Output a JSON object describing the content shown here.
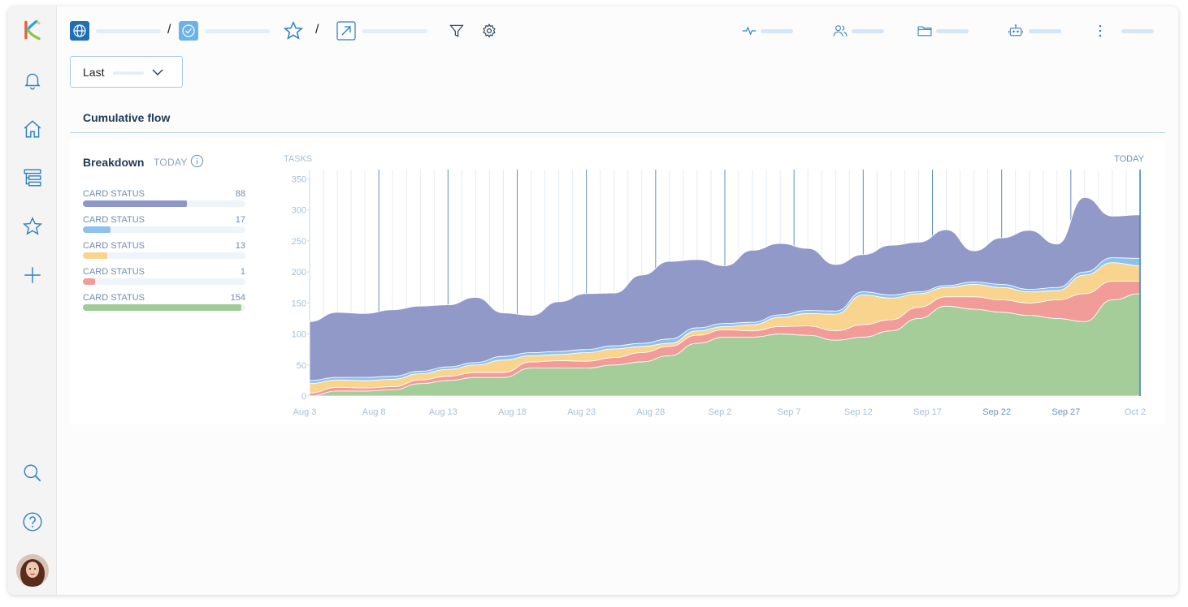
{
  "sidebar": {
    "items": [
      {
        "icon": "bell-icon"
      },
      {
        "icon": "home-icon"
      },
      {
        "icon": "boards-icon"
      },
      {
        "icon": "star-icon"
      },
      {
        "icon": "plus-icon"
      },
      {
        "icon": "search-icon"
      },
      {
        "icon": "help-icon"
      }
    ]
  },
  "topbar": {
    "breadcrumb_separator": "/",
    "icons": [
      "globe-icon",
      "check-circle-icon",
      "star-icon",
      "external-link-icon",
      "filter-icon",
      "gear-icon",
      "activity-icon",
      "users-icon",
      "folder-icon",
      "robot-icon",
      "more-icon"
    ]
  },
  "filter": {
    "label": "Last"
  },
  "section": {
    "title": "Cumulative flow"
  },
  "breakdown": {
    "title": "Breakdown",
    "period": "TODAY",
    "items": [
      {
        "label": "CARD STATUS",
        "value": "88",
        "fraction": 0.64,
        "color": "#8d96c8"
      },
      {
        "label": "CARD STATUS",
        "value": "17",
        "fraction": 0.17,
        "color": "#8cc2ee"
      },
      {
        "label": "CARD STATUS",
        "value": "13",
        "fraction": 0.15,
        "color": "#f9d48f"
      },
      {
        "label": "CARD STATUS",
        "value": "1",
        "fraction": 0.075,
        "color": "#f29c9a"
      },
      {
        "label": "CARD STATUS",
        "value": "154",
        "fraction": 0.975,
        "color": "#9fcb96"
      }
    ]
  },
  "chart_data": {
    "type": "area",
    "stacked": true,
    "ylabel": "TASKS",
    "today_label": "TODAY",
    "ylim": [
      0,
      360
    ],
    "yticks": [
      0,
      50,
      100,
      150,
      200,
      250,
      300,
      350
    ],
    "x_tick_labels": [
      "Aug 3",
      "Aug 8",
      "Aug 13",
      "Aug 18",
      "Aug 23",
      "Aug 28",
      "Sep 2",
      "Sep 7",
      "Sep 12",
      "Sep 17",
      "Sep 22",
      "Sep 27",
      "Oct 2"
    ],
    "x_tick_emphasized": [
      "Sep 22",
      "Sep 27"
    ],
    "day_count": 61,
    "x_days": [
      0,
      2,
      4,
      6,
      8,
      10,
      12,
      14,
      16,
      18,
      20,
      22,
      24,
      26,
      28,
      30,
      32,
      34,
      36,
      38,
      40,
      42,
      44,
      46,
      48,
      50,
      52,
      54,
      56,
      58,
      60
    ],
    "series": [
      {
        "color": "#a4cd9a",
        "values": [
          0,
          8,
          8,
          10,
          20,
          25,
          30,
          30,
          45,
          45,
          45,
          50,
          55,
          65,
          85,
          95,
          95,
          100,
          98,
          90,
          95,
          105,
          125,
          145,
          140,
          135,
          130,
          125,
          120,
          155,
          165
        ]
      },
      {
        "color": "#f29c9a",
        "values": [
          5,
          6,
          5,
          5,
          6,
          7,
          8,
          8,
          10,
          12,
          11,
          12,
          15,
          15,
          13,
          12,
          10,
          12,
          15,
          15,
          20,
          18,
          18,
          15,
          20,
          20,
          20,
          30,
          45,
          30,
          20
        ]
      },
      {
        "color": "#f9d48f",
        "values": [
          15,
          12,
          12,
          12,
          10,
          11,
          12,
          20,
          10,
          10,
          14,
          14,
          10,
          5,
          7,
          5,
          10,
          15,
          20,
          27,
          48,
          35,
          22,
          15,
          20,
          20,
          18,
          15,
          30,
          30,
          25
        ]
      },
      {
        "color": "#8cc2ee",
        "values": [
          5,
          4,
          5,
          5,
          4,
          4,
          4,
          6,
          5,
          5,
          5,
          5,
          5,
          7,
          5,
          5,
          4,
          4,
          5,
          5,
          5,
          5,
          3,
          3,
          4,
          5,
          4,
          5,
          5,
          8,
          12
        ]
      },
      {
        "color": "#9199c9",
        "values": [
          95,
          105,
          103,
          107,
          105,
          100,
          105,
          70,
          60,
          80,
          90,
          85,
          110,
          125,
          110,
          93,
          116,
          115,
          100,
          75,
          60,
          80,
          80,
          90,
          50,
          75,
          95,
          70,
          120,
          67,
          70
        ]
      }
    ]
  }
}
